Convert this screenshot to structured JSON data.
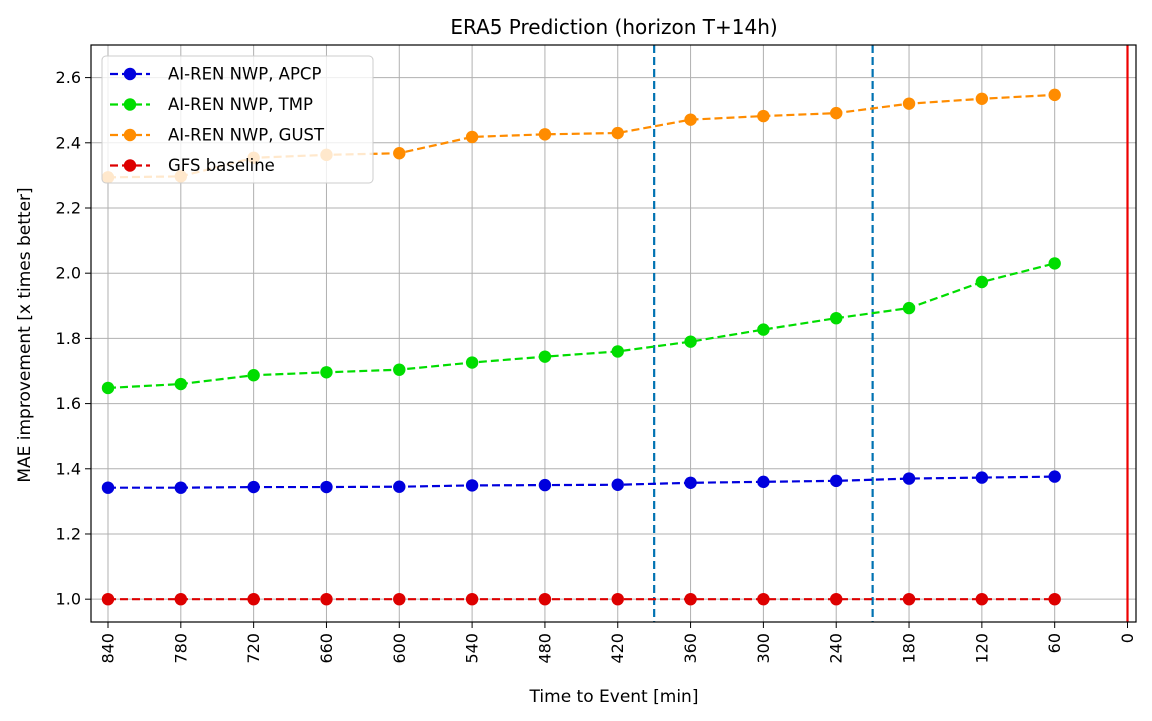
{
  "chart_data": {
    "type": "line",
    "title": "ERA5 Prediction (horizon T+14h)",
    "xlabel": "Time to Event [min]",
    "ylabel": "MAE improvement [x times better]",
    "x_ticks": [
      840,
      780,
      720,
      660,
      600,
      540,
      480,
      420,
      360,
      300,
      240,
      180,
      120,
      60,
      0
    ],
    "x_tick_labels": [
      "840",
      "780",
      "720",
      "660",
      "600",
      "540",
      "480",
      "420",
      "360",
      "300",
      "240",
      "180",
      "120",
      "60",
      "0"
    ],
    "xlim": [
      854,
      -7
    ],
    "ylim": [
      0.93,
      2.7
    ],
    "y_ticks": [
      1.0,
      1.2,
      1.4,
      1.6,
      1.8,
      2.0,
      2.2,
      2.4,
      2.6
    ],
    "y_tick_labels": [
      "1.0",
      "1.2",
      "1.4",
      "1.6",
      "1.8",
      "2.0",
      "2.2",
      "2.4",
      "2.6"
    ],
    "grid": true,
    "legend_position": "top-left",
    "x": [
      840,
      780,
      720,
      660,
      600,
      540,
      480,
      420,
      360,
      300,
      240,
      180,
      120,
      60
    ],
    "series": [
      {
        "name": "AI-REN NWP, APCP",
        "color": "#0000dd",
        "style": "dashed",
        "marker": "circle",
        "values": [
          1.342,
          1.342,
          1.344,
          1.344,
          1.345,
          1.349,
          1.35,
          1.351,
          1.357,
          1.36,
          1.363,
          1.37,
          1.373,
          1.376
        ]
      },
      {
        "name": "AI-REN NWP, TMP",
        "color": "#00dd00",
        "style": "dashed",
        "marker": "circle",
        "values": [
          1.648,
          1.66,
          1.687,
          1.696,
          1.704,
          1.726,
          1.744,
          1.76,
          1.79,
          1.827,
          1.862,
          1.893,
          1.973,
          2.03
        ]
      },
      {
        "name": "AI-REN NWP, GUST",
        "color": "#ff8c00",
        "style": "dashed",
        "marker": "circle",
        "values": [
          2.294,
          2.297,
          2.354,
          2.363,
          2.368,
          2.418,
          2.426,
          2.43,
          2.471,
          2.482,
          2.491,
          2.52,
          2.535,
          2.547
        ]
      },
      {
        "name": "GFS baseline",
        "color": "#dd0000",
        "style": "dashed",
        "marker": "circle",
        "values": [
          1.0,
          1.0,
          1.0,
          1.0,
          1.0,
          1.0,
          1.0,
          1.0,
          1.0,
          1.0,
          1.0,
          1.0,
          1.0,
          1.0
        ]
      }
    ],
    "vertical_lines": [
      {
        "x": 390,
        "color": "#0072b2",
        "style": "dashed"
      },
      {
        "x": 210,
        "color": "#0072b2",
        "style": "dashed"
      },
      {
        "x": 0,
        "color": "#ee0000",
        "style": "solid"
      }
    ]
  }
}
